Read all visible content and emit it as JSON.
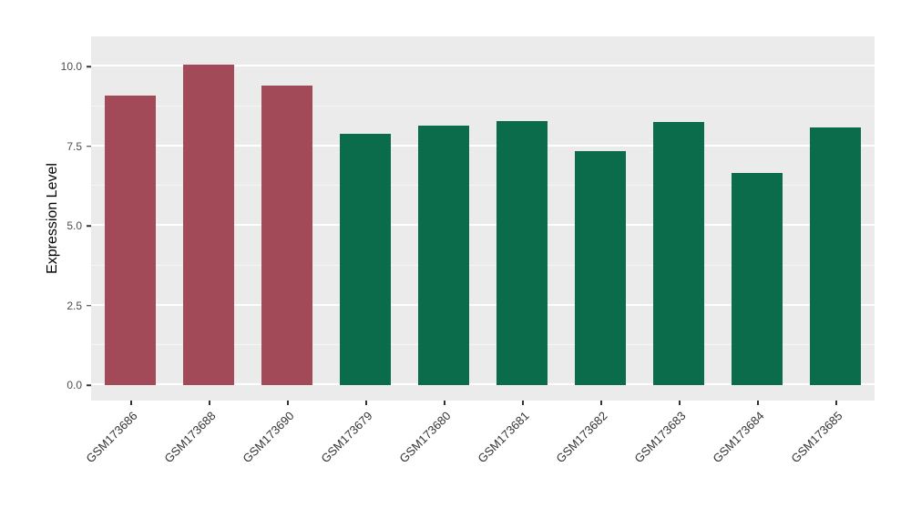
{
  "chart_data": {
    "type": "bar",
    "title": "",
    "xlabel": "",
    "ylabel": "Expression Level",
    "categories": [
      "GSM173686",
      "GSM173688",
      "GSM173690",
      "GSM173679",
      "GSM173680",
      "GSM173681",
      "GSM173682",
      "GSM173683",
      "GSM173684",
      "GSM173685"
    ],
    "values": [
      9.1,
      10.05,
      9.4,
      7.9,
      8.15,
      8.3,
      7.35,
      8.25,
      6.65,
      8.1
    ],
    "bar_colors": [
      "#A34A58",
      "#A34A58",
      "#A34A58",
      "#0B6C4B",
      "#0B6C4B",
      "#0B6C4B",
      "#0B6C4B",
      "#0B6C4B",
      "#0B6C4B",
      "#0B6C4B"
    ],
    "group_colors": {
      "maroon_group": "#A34A58",
      "green_group": "#0B6C4B"
    },
    "yticks": [
      0,
      2.5,
      5,
      7.5,
      10
    ],
    "ytick_labels": [
      "0.0",
      "2.5",
      "5.0",
      "7.5",
      "10.0"
    ],
    "minor_ticks": [
      1.25,
      3.75,
      6.25,
      8.75
    ],
    "ylim": [
      0,
      10.9
    ],
    "grid": true,
    "legend": "none",
    "panel_background": "#EBEBEB",
    "grid_color": "#FFFFFF"
  }
}
